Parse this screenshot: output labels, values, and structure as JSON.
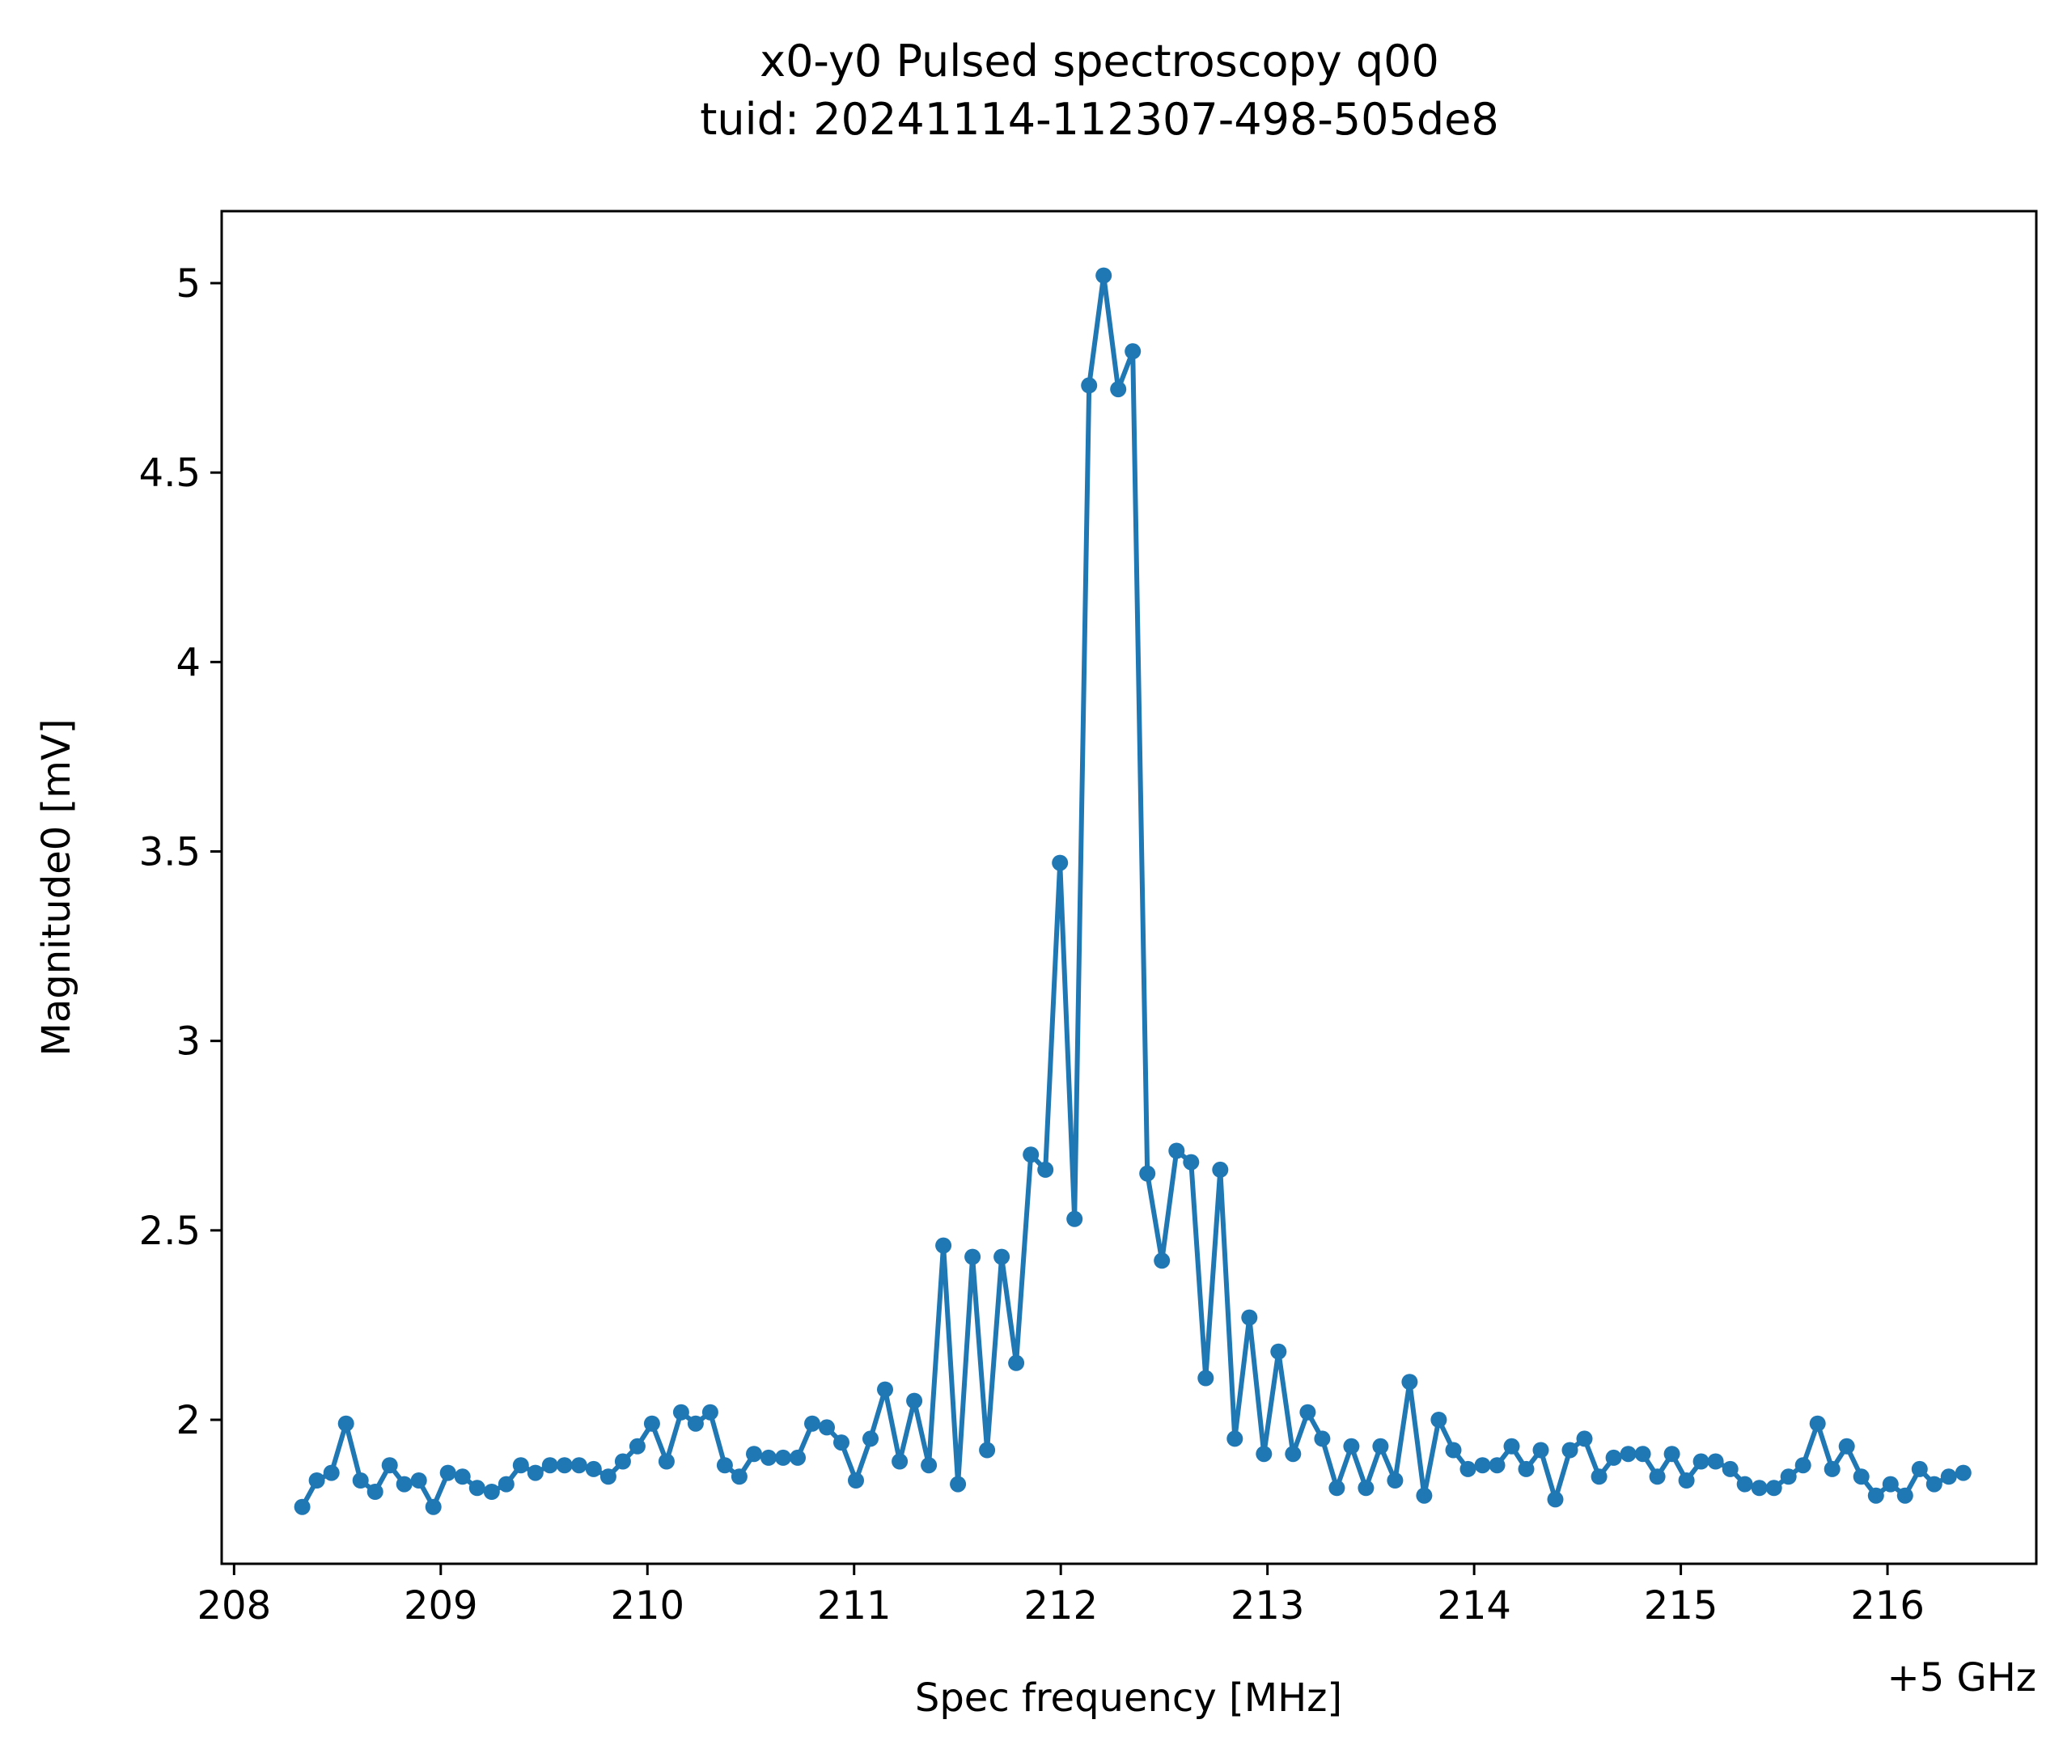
{
  "chart_data": {
    "type": "line",
    "title": "x0-y0 Pulsed spectroscopy q00",
    "subtitle": "tuid: 20241114-112307-498-505de8",
    "xlabel": "Spec frequency [MHz]",
    "ylabel": "Magnitude0 [mV]",
    "x_offset_label": "+5 GHz",
    "xlim": [
      207.94,
      216.72
    ],
    "ylim": [
      1.62,
      5.19
    ],
    "x_ticks": [
      208,
      209,
      210,
      211,
      212,
      213,
      214,
      215,
      216
    ],
    "x_tick_labels": [
      "208",
      "209",
      "210",
      "211",
      "212",
      "213",
      "214",
      "215",
      "216"
    ],
    "y_ticks": [
      2,
      2.5,
      3,
      3.5,
      4,
      4.5,
      5
    ],
    "y_tick_labels": [
      "2",
      "2.5",
      "3",
      "3.5",
      "4",
      "4.5",
      "5"
    ],
    "grid": false,
    "line_color": "#1f77b4",
    "series": [
      {
        "x_start": 208.33,
        "x_step": 0.0705,
        "values": [
          1.77,
          1.84,
          1.86,
          1.99,
          1.84,
          1.81,
          1.88,
          1.83,
          1.84,
          1.77,
          1.86,
          1.85,
          1.82,
          1.81,
          1.83,
          1.88,
          1.86,
          1.88,
          1.88,
          1.88,
          1.87,
          1.85,
          1.89,
          1.93,
          1.99,
          1.89,
          2.02,
          1.99,
          2.02,
          1.88,
          1.85,
          1.91,
          1.9,
          1.9,
          1.9,
          1.99,
          1.98,
          1.94,
          1.84,
          1.95,
          2.08,
          1.89,
          2.05,
          1.88,
          2.46,
          1.83,
          2.43,
          1.92,
          2.43,
          2.15,
          2.7,
          2.66,
          3.47,
          2.53,
          4.73,
          5.02,
          4.72,
          4.82,
          2.65,
          2.42,
          2.71,
          2.68,
          2.11,
          2.66,
          1.95,
          2.27,
          1.91,
          2.18,
          1.91,
          2.02,
          1.95,
          1.82,
          1.93,
          1.82,
          1.93,
          1.84,
          2.1,
          1.8,
          2.0,
          1.92,
          1.87,
          1.88,
          1.88,
          1.93,
          1.87,
          1.92,
          1.79,
          1.92,
          1.95,
          1.85,
          1.9,
          1.91,
          1.91,
          1.85,
          1.91,
          1.84,
          1.89,
          1.89,
          1.87,
          1.83,
          1.82,
          1.82,
          1.85,
          1.88,
          1.99,
          1.87,
          1.93,
          1.85,
          1.8,
          1.83,
          1.8,
          1.87,
          1.83,
          1.85,
          1.86
        ]
      }
    ]
  }
}
